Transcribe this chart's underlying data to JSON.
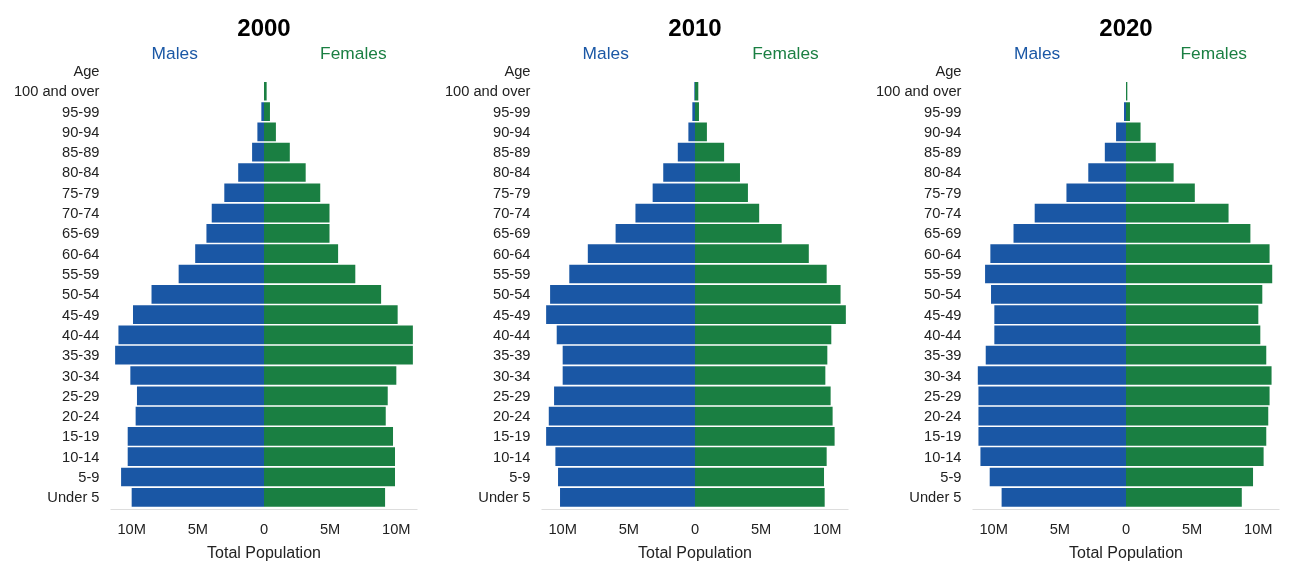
{
  "chart_data": [
    {
      "type": "bar",
      "orientation": "horizontal",
      "stacked": true,
      "title": "2000",
      "xlabel": "Total Population",
      "ylabel": "Age",
      "categories": [
        "100 and over",
        "95-99",
        "90-94",
        "85-89",
        "80-84",
        "75-79",
        "70-74",
        "65-69",
        "60-64",
        "55-59",
        "50-54",
        "45-49",
        "40-44",
        "35-39",
        "30-34",
        "25-29",
        "20-24",
        "15-19",
        "10-14",
        "5-9",
        "Under 5"
      ],
      "series": [
        {
          "name": "Males",
          "color": "#1a57a5",
          "values": [
            null,
            -200000,
            -500000,
            -900000,
            -1950000,
            -3000000,
            -3950000,
            -4350000,
            -5200000,
            -6450000,
            -8500000,
            -9900000,
            -11000000,
            -11250000,
            -10100000,
            -9600000,
            -9700000,
            -10300000,
            -10300000,
            -10800000,
            -10000000
          ]
        },
        {
          "name": "Females",
          "color": "#1a7f42",
          "values": [
            200000,
            450000,
            900000,
            1950000,
            3150000,
            4250000,
            4950000,
            4950000,
            5600000,
            6900000,
            8850000,
            10100000,
            11250000,
            11250000,
            10000000,
            9350000,
            9200000,
            9750000,
            9900000,
            9900000,
            9150000
          ]
        }
      ],
      "xlim": [
        -11600000,
        11600000
      ],
      "xticks": [
        {
          "value": -10000000,
          "label": "10M"
        },
        {
          "value": -5000000,
          "label": "5M"
        },
        0,
        {
          "value": 5000000,
          "label": "5M"
        },
        {
          "value": 10000000,
          "label": "10M"
        }
      ]
    },
    {
      "type": "bar",
      "orientation": "horizontal",
      "stacked": true,
      "title": "2010",
      "xlabel": "Total Population",
      "ylabel": "Age",
      "categories": [
        "100 and over",
        "95-99",
        "90-94",
        "85-89",
        "80-84",
        "75-79",
        "70-74",
        "65-69",
        "60-64",
        "55-59",
        "50-54",
        "45-49",
        "40-44",
        "35-39",
        "30-34",
        "25-29",
        "20-24",
        "15-19",
        "10-14",
        "5-9",
        "Under 5"
      ],
      "series": [
        {
          "name": "Males",
          "color": "#1a57a5",
          "values": [
            -50000,
            -200000,
            -500000,
            -1300000,
            -2400000,
            -3200000,
            -4500000,
            -6000000,
            -8100000,
            -9500000,
            -10950000,
            -11250000,
            -10450000,
            -10000000,
            -10000000,
            -10650000,
            -11050000,
            -11250000,
            -10550000,
            -10350000,
            -10200000
          ]
        },
        {
          "name": "Females",
          "color": "#1a7f42",
          "values": [
            250000,
            300000,
            900000,
            2200000,
            3400000,
            4000000,
            4850000,
            6550000,
            8600000,
            9950000,
            11000000,
            11400000,
            10300000,
            10000000,
            9850000,
            10250000,
            10400000,
            10550000,
            9950000,
            9750000,
            9800000
          ]
        }
      ],
      "xlim": [
        -11600000,
        11600000
      ],
      "xticks": [
        {
          "value": -10000000,
          "label": "10M"
        },
        {
          "value": -5000000,
          "label": "5M"
        },
        0,
        {
          "value": 5000000,
          "label": "5M"
        },
        {
          "value": 10000000,
          "label": "10M"
        }
      ]
    },
    {
      "type": "bar",
      "orientation": "horizontal",
      "stacked": true,
      "title": "2020",
      "xlabel": "Total Population",
      "ylabel": "Age",
      "categories": [
        "100 and over",
        "95-99",
        "90-94",
        "85-89",
        "80-84",
        "75-79",
        "70-74",
        "65-69",
        "60-64",
        "55-59",
        "50-54",
        "45-49",
        "40-44",
        "35-39",
        "30-34",
        "25-29",
        "20-24",
        "15-19",
        "10-14",
        "5-9",
        "Under 5"
      ],
      "series": [
        {
          "name": "Males",
          "color": "#1a57a5",
          "values": [
            null,
            -150000,
            -750000,
            -1600000,
            -2850000,
            -4500000,
            -6900000,
            -8500000,
            -10250000,
            -10650000,
            -10200000,
            -9950000,
            -9950000,
            -10600000,
            -11200000,
            -11150000,
            -11150000,
            -11150000,
            -11000000,
            -10300000,
            -9400000
          ]
        },
        {
          "name": "Females",
          "color": "#1a7f42",
          "values": [
            100000,
            300000,
            1100000,
            2250000,
            3600000,
            5200000,
            7750000,
            9400000,
            10850000,
            11050000,
            10300000,
            10000000,
            10150000,
            10600000,
            11000000,
            10850000,
            10750000,
            10600000,
            10400000,
            9600000,
            8750000
          ]
        }
      ],
      "xlim": [
        -11600000,
        11600000
      ],
      "xticks": [
        {
          "value": -10000000,
          "label": "10M"
        },
        {
          "value": -5000000,
          "label": "5M"
        },
        0,
        {
          "value": 5000000,
          "label": "5M"
        },
        {
          "value": 10000000,
          "label": "10M"
        }
      ]
    }
  ]
}
